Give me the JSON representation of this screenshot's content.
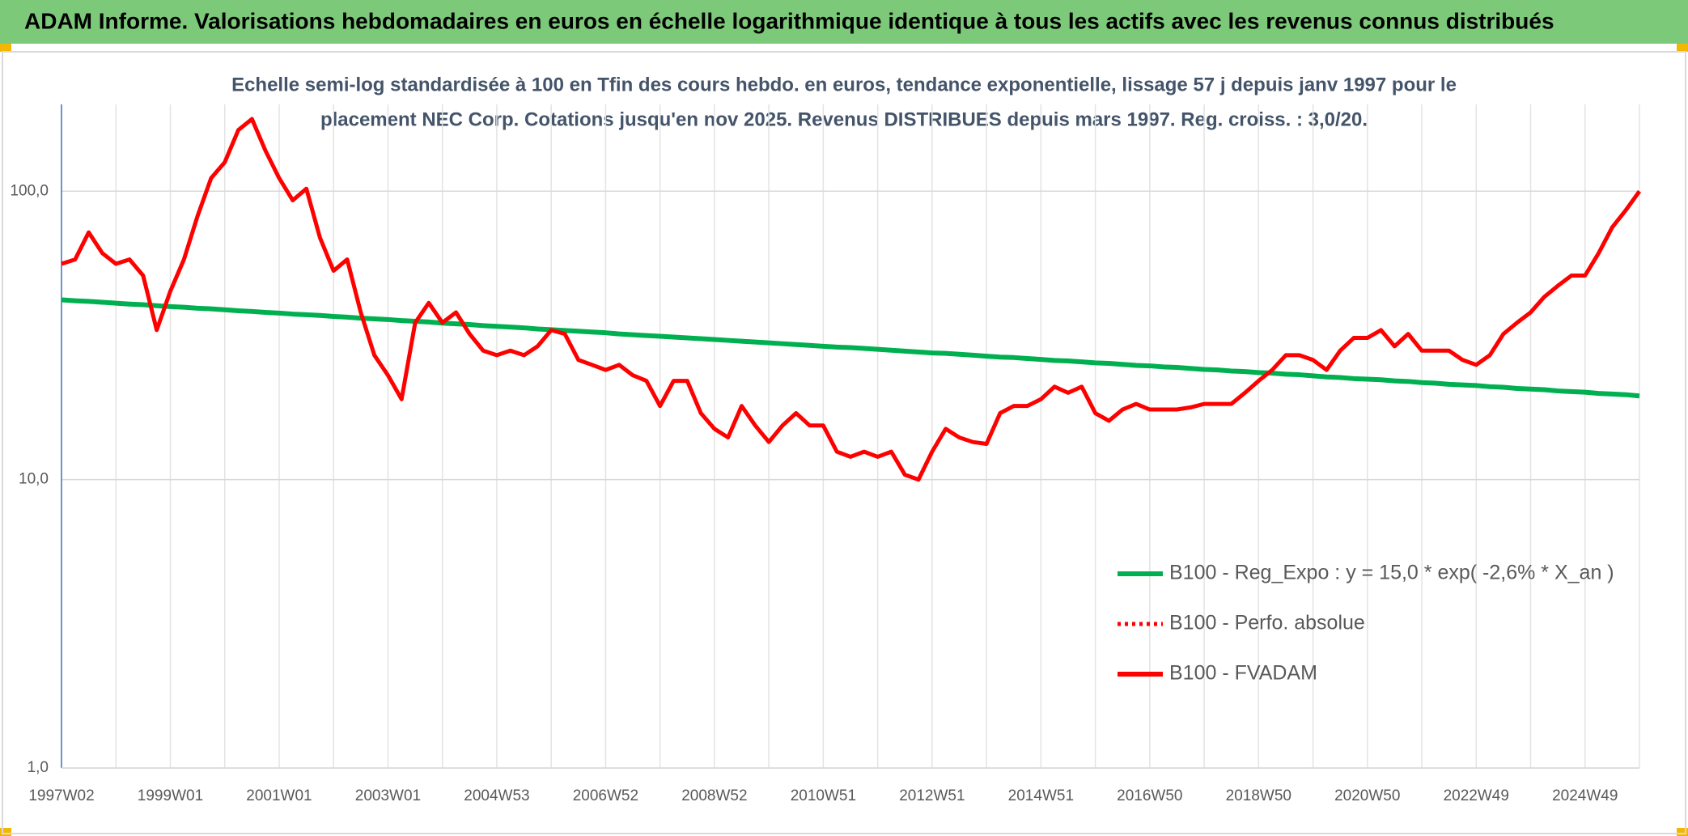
{
  "chart_data": {
    "type": "line",
    "title": "ADAM Informe. Valorisations hebdomadaires en euros en échelle logarithmique identique à tous les actifs avec les revenus connus distribués",
    "subtitle": [
      "Echelle semi-log standardisée à 100 en Tfin des cours hebdo. en euros, tendance exponentielle, lissage 57 j depuis janv 1997 pour le",
      "placement NEC Corp. Cotations jusqu'en nov 2025. Revenus DISTRIBUES depuis mars 1997. Reg. croiss. : 3,0/20."
    ],
    "log_scale": true,
    "grid": true,
    "legend": "lower right",
    "ylim": [
      1,
      200
    ],
    "yticks": [
      {
        "value": 1,
        "label": "1,0"
      },
      {
        "value": 10,
        "label": "10,0"
      },
      {
        "value": 100,
        "label": "100,0"
      }
    ],
    "categories": [
      "1997W02",
      null,
      null,
      null,
      null,
      null,
      null,
      null,
      "1999W01",
      null,
      null,
      null,
      null,
      null,
      null,
      null,
      "2001W01",
      null,
      null,
      null,
      null,
      null,
      null,
      null,
      "2003W01",
      null,
      null,
      null,
      null,
      null,
      null,
      null,
      "2004W53",
      null,
      null,
      null,
      null,
      null,
      null,
      null,
      "2006W52",
      null,
      null,
      null,
      null,
      null,
      null,
      null,
      "2008W52",
      null,
      null,
      null,
      null,
      null,
      null,
      null,
      "2010W51",
      null,
      null,
      null,
      null,
      null,
      null,
      null,
      "2012W51",
      null,
      null,
      null,
      null,
      null,
      null,
      null,
      "2014W51",
      null,
      null,
      null,
      null,
      null,
      null,
      null,
      "2016W50",
      null,
      null,
      null,
      null,
      null,
      null,
      null,
      "2018W50",
      null,
      null,
      null,
      null,
      null,
      null,
      null,
      "2020W50",
      null,
      null,
      null,
      null,
      null,
      null,
      null,
      "2022W49",
      null,
      null,
      null,
      null,
      null,
      null,
      null,
      "2024W49",
      null,
      null,
      null,
      null
    ],
    "series": [
      {
        "name": "B100 - Reg_Expo : y = 15,0 * exp( -2,6% *  X_an )",
        "color": "#00b050",
        "width": 6,
        "values": [
          42.0,
          41.7,
          41.5,
          41.2,
          40.9,
          40.6,
          40.4,
          40.1,
          39.8,
          39.6,
          39.3,
          39.1,
          38.8,
          38.5,
          38.3,
          38.0,
          37.8,
          37.5,
          37.3,
          37.1,
          36.8,
          36.6,
          36.3,
          36.1,
          35.9,
          35.6,
          35.4,
          35.2,
          34.9,
          34.7,
          34.5,
          34.2,
          34.0,
          33.8,
          33.6,
          33.3,
          33.1,
          32.9,
          32.7,
          32.5,
          32.3,
          32.0,
          31.8,
          31.6,
          31.4,
          31.2,
          31.0,
          30.8,
          30.6,
          30.4,
          30.2,
          30.0,
          29.8,
          29.6,
          29.4,
          29.2,
          29.0,
          28.8,
          28.7,
          28.5,
          28.3,
          28.1,
          27.9,
          27.7,
          27.5,
          27.4,
          27.2,
          27.0,
          26.8,
          26.6,
          26.5,
          26.3,
          26.1,
          25.9,
          25.8,
          25.6,
          25.4,
          25.3,
          25.1,
          24.9,
          24.8,
          24.6,
          24.5,
          24.3,
          24.1,
          24.0,
          23.8,
          23.7,
          23.5,
          23.4,
          23.2,
          23.1,
          22.9,
          22.7,
          22.6,
          22.4,
          22.3,
          22.2,
          22.0,
          21.9,
          21.7,
          21.6,
          21.4,
          21.3,
          21.2,
          21.0,
          20.9,
          20.7,
          20.6,
          20.5,
          20.3,
          20.2,
          20.1,
          19.9,
          19.8,
          19.7,
          19.5
        ]
      },
      {
        "name": "B100 - Perfo. absolue",
        "color": "#ff0000",
        "width": 4,
        "dash": "dotted"
      },
      {
        "name": "B100 - FVADAM",
        "color": "#ff0000",
        "width": 5,
        "values": [
          56,
          58,
          72,
          61,
          56,
          58,
          51,
          33,
          45,
          58,
          82,
          111,
          126,
          163,
          178,
          138,
          111,
          93,
          102,
          69,
          53,
          58,
          38,
          27,
          23,
          19,
          35,
          41,
          35,
          38,
          32,
          28,
          27,
          28,
          27,
          29,
          33,
          32,
          26,
          25,
          24,
          25,
          23,
          22,
          18,
          22,
          22,
          17,
          15,
          14,
          18,
          15.4,
          13.5,
          15.4,
          17,
          15.4,
          15.4,
          12.5,
          12,
          12.5,
          12,
          12.5,
          10.4,
          10,
          12.5,
          15,
          14,
          13.5,
          13.3,
          17,
          18,
          18,
          19,
          21,
          20,
          21,
          17,
          16,
          17.5,
          18.3,
          17.5,
          17.5,
          17.5,
          17.8,
          18.3,
          18.3,
          18.3,
          20,
          22,
          24,
          27,
          27,
          26,
          24,
          28,
          31,
          31,
          33,
          29,
          32,
          28,
          28,
          28,
          26,
          25,
          27,
          32,
          35,
          38,
          43,
          47,
          51,
          51,
          61,
          75,
          86,
          100
        ]
      }
    ]
  }
}
